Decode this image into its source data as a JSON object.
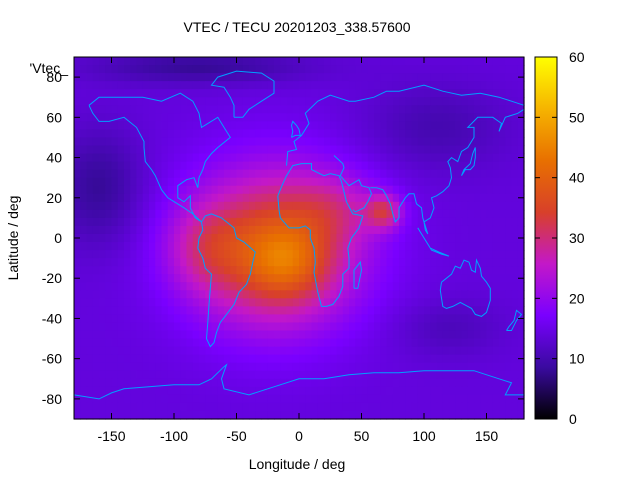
{
  "chart_data": {
    "type": "heatmap",
    "title": "VTEC / TECU 20201203_338.57600",
    "xlabel": "Longitude / deg",
    "ylabel": "Latitude / deg",
    "xlim": [
      -180,
      180
    ],
    "ylim": [
      -90,
      90
    ],
    "x_ticks": [
      -150,
      -100,
      -50,
      0,
      50,
      100,
      150
    ],
    "y_ticks": [
      -80,
      -60,
      -40,
      -20,
      0,
      20,
      40,
      60,
      80
    ],
    "x_tick_labels": [
      "-150",
      "-100",
      "-50",
      "0",
      "50",
      "100",
      "150"
    ],
    "y_tick_labels": [
      "-80",
      "-60",
      "-40",
      "-20",
      "0",
      "20",
      "40",
      "60",
      "80"
    ],
    "colorbar": {
      "range": [
        0,
        60
      ],
      "ticks": [
        0,
        10,
        20,
        30,
        40,
        50,
        60
      ],
      "tick_labels": [
        "0",
        "10",
        "20",
        "30",
        "40",
        "50",
        "60"
      ],
      "palette": [
        "#000000",
        "#3a0aa0",
        "#7a00ff",
        "#c318c8",
        "#d8402a",
        "#e87000",
        "#f6b400",
        "#ffff00"
      ]
    },
    "legend_text": "'Vtec_",
    "legend_position": "top-left",
    "background_vtec": 14,
    "features": [
      {
        "name": "main-anomaly",
        "center_lon": -20,
        "center_lat": -5,
        "sigma_lon": 48,
        "sigma_lat": 28,
        "peak_vtec": 23
      },
      {
        "name": "core",
        "center_lon": -10,
        "center_lat": -12,
        "sigma_lon": 22,
        "sigma_lat": 13,
        "peak_vtec": 9
      },
      {
        "name": "west-lobe",
        "center_lon": -75,
        "center_lat": -5,
        "sigma_lon": 22,
        "sigma_lat": 15,
        "peak_vtec": 7
      },
      {
        "name": "indian-ocean-spot",
        "center_lon": 68,
        "center_lat": 13,
        "sigma_lon": 10,
        "sigma_lat": 6,
        "peak_vtec": 14
      },
      {
        "name": "north-africa-arm",
        "center_lon": 30,
        "center_lat": 15,
        "sigma_lon": 25,
        "sigma_lat": 12,
        "peak_vtec": 6
      },
      {
        "name": "north-pacific-low",
        "center_lon": -160,
        "center_lat": 25,
        "sigma_lon": 25,
        "sigma_lat": 20,
        "peak_vtec": -6
      },
      {
        "name": "siberia-low",
        "center_lon": 110,
        "center_lat": 55,
        "sigma_lon": 40,
        "sigma_lat": 15,
        "peak_vtec": -4
      },
      {
        "name": "arctic-low",
        "center_lon": -80,
        "center_lat": 85,
        "sigma_lon": 60,
        "sigma_lat": 6,
        "peak_vtec": -6
      },
      {
        "name": "south-pacific-low",
        "center_lon": 120,
        "center_lat": -45,
        "sigma_lon": 30,
        "sigma_lat": 10,
        "peak_vtec": -3
      }
    ]
  }
}
